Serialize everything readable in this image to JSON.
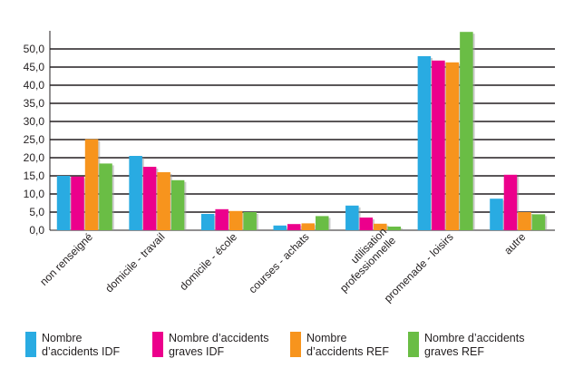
{
  "chart_data": {
    "type": "bar",
    "title": "",
    "xlabel": "",
    "ylabel": "",
    "ylim": [
      0,
      55
    ],
    "yticks": [
      "0,0",
      "5,0",
      "10,0",
      "15,0",
      "20,0",
      "25,0",
      "30,0",
      "35,0",
      "40,0",
      "45,0",
      "50,0"
    ],
    "grid": true,
    "legend_position": "bottom",
    "categories": [
      "non renseigné",
      "domicile - travail",
      "domicile - école",
      "courses - achats",
      "utilisation professionnelle",
      "promenade - loisirs",
      "autre"
    ],
    "series": [
      {
        "name": "Nombre d'accidents IDF",
        "color": "#29abe2",
        "values": [
          15.0,
          20.5,
          4.5,
          1.3,
          6.8,
          48.0,
          8.7
        ]
      },
      {
        "name": "Nombre d'accidents graves IDF",
        "color": "#ec008c",
        "values": [
          14.8,
          17.5,
          5.8,
          1.7,
          3.5,
          46.8,
          15.3
        ]
      },
      {
        "name": "Nombre d'accidents REF",
        "color": "#f7941d",
        "values": [
          25.1,
          16.0,
          5.3,
          1.9,
          1.8,
          46.3,
          5.0
        ]
      },
      {
        "name": "Nombre d'accidents graves REF",
        "color": "#6abd45",
        "values": [
          18.4,
          13.8,
          5.0,
          3.9,
          1.0,
          54.7,
          4.4
        ]
      }
    ]
  }
}
